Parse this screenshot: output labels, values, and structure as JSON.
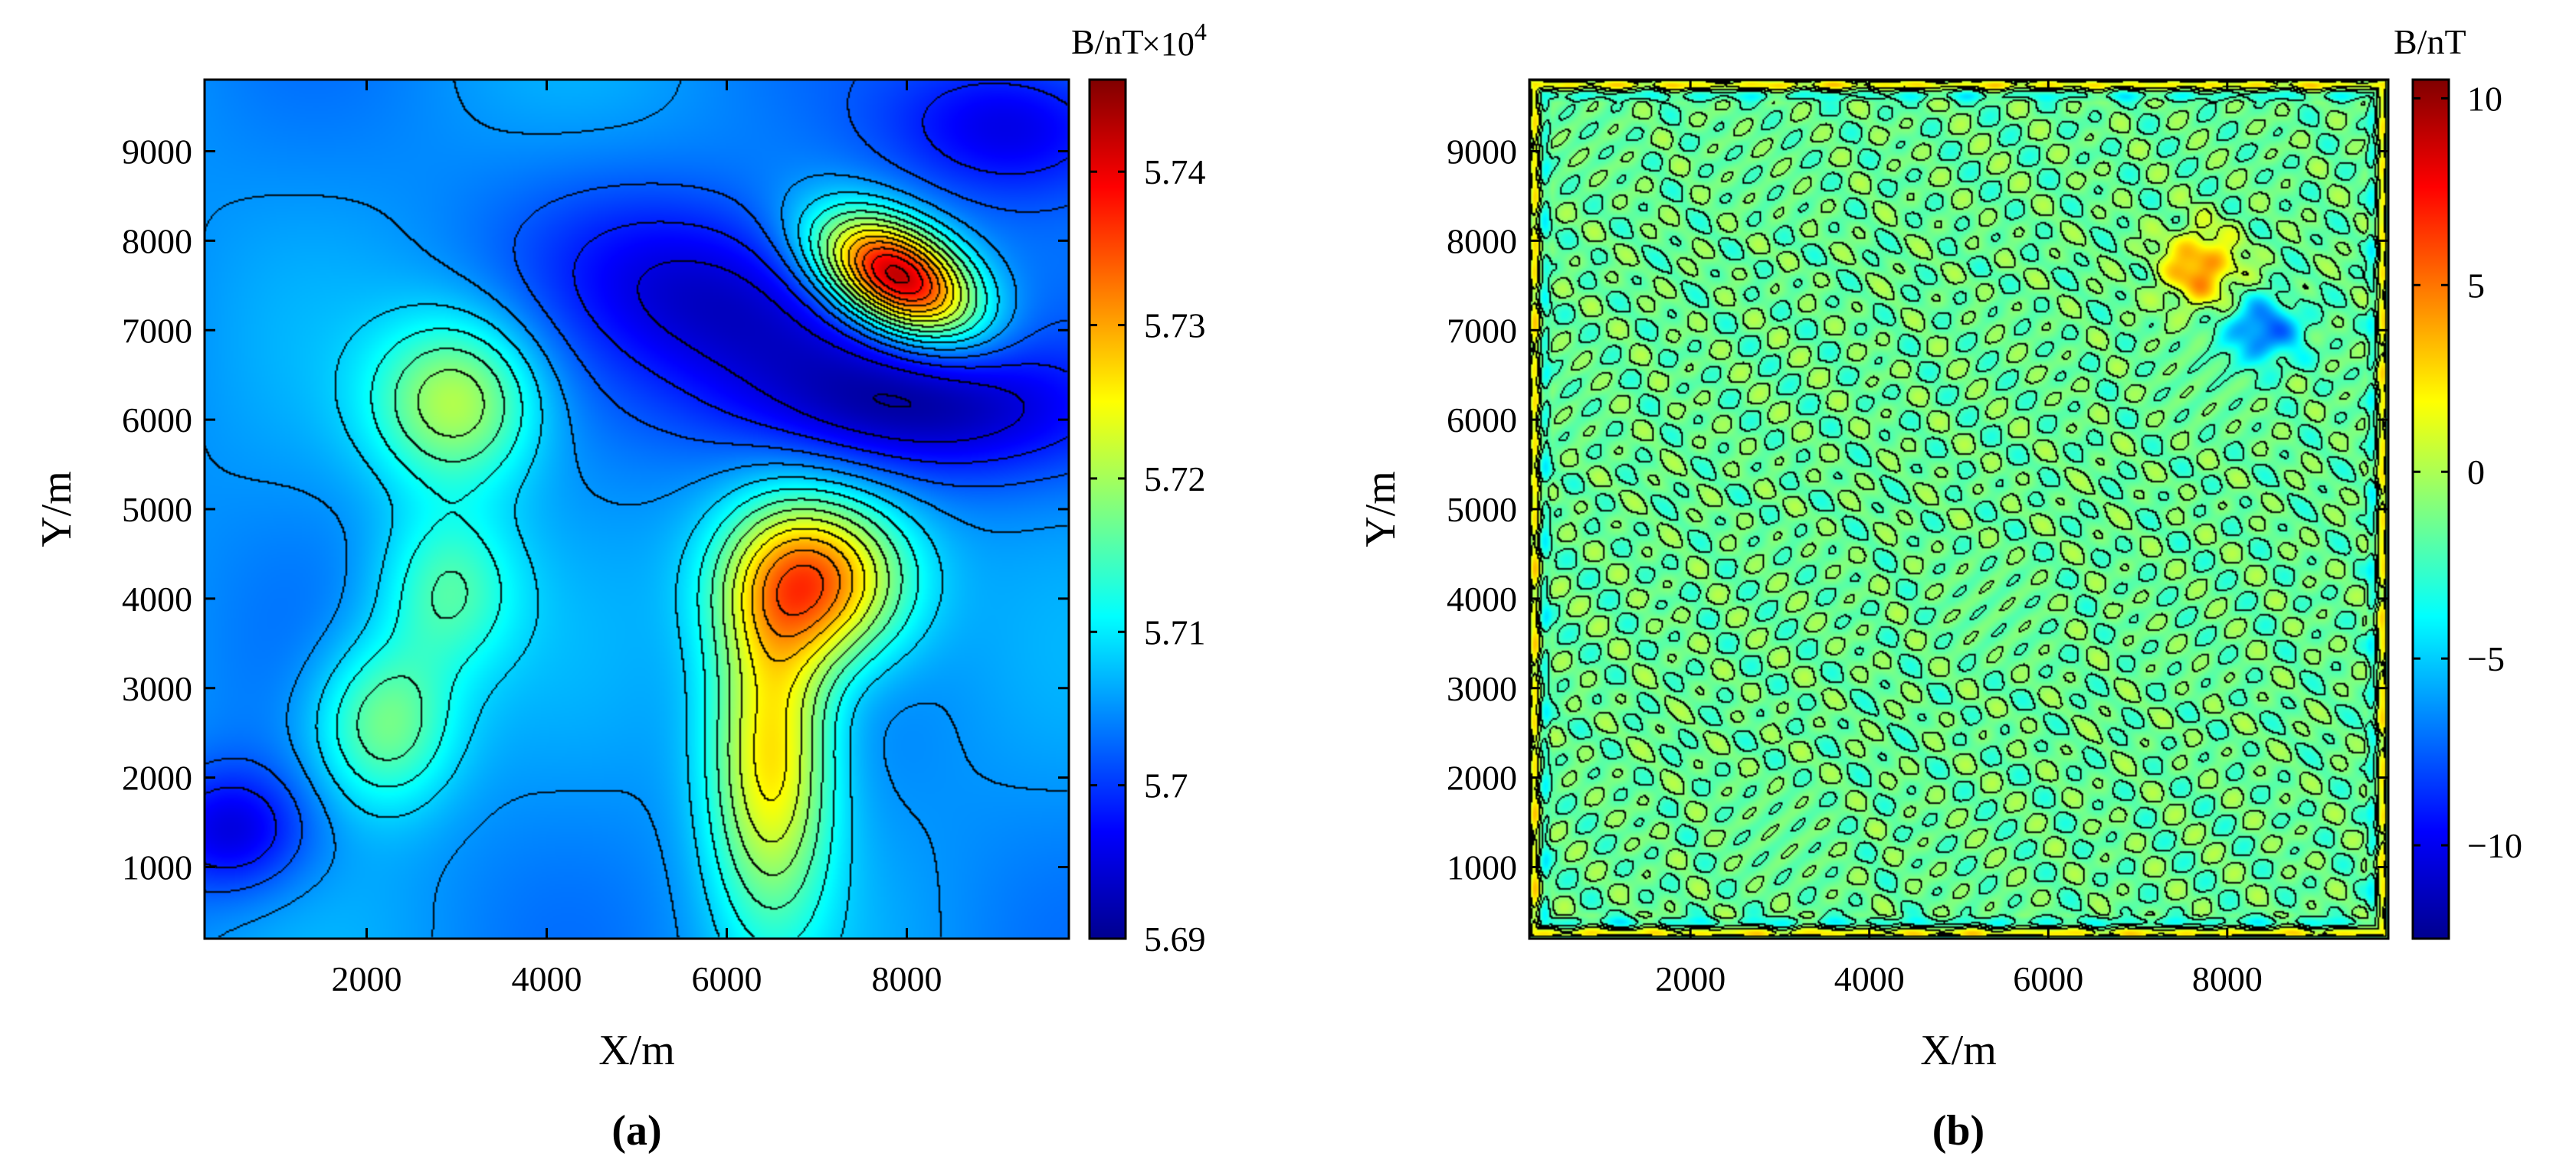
{
  "chart_data": [
    {
      "type": "heatmap",
      "panel_label": "(a)",
      "xlabel": "X/m",
      "ylabel": "Y/m",
      "xlim": [
        200,
        9800
      ],
      "ylim": [
        200,
        9800
      ],
      "xticks": [
        2000,
        4000,
        6000,
        8000
      ],
      "yticks": [
        1000,
        2000,
        3000,
        4000,
        5000,
        6000,
        7000,
        8000,
        9000
      ],
      "colorbar": {
        "label": "B/nT",
        "exponent_label": "×10",
        "exponent": "4",
        "range": [
          5.69,
          5.746
        ],
        "ticks": [
          "5.69",
          "5.7",
          "5.71",
          "5.72",
          "5.73",
          "5.74"
        ],
        "tick_values": [
          5.69,
          5.7,
          5.71,
          5.72,
          5.73,
          5.74
        ],
        "colormap": "jet"
      },
      "base_level": 5.705,
      "features": [
        {
          "x": 7900,
          "y": 7600,
          "amp": 0.04,
          "sx": 650,
          "sy": 380,
          "rot": -30
        },
        {
          "x": 7000,
          "y": 4200,
          "amp": 0.028,
          "sx": 700,
          "sy": 650,
          "rot": 0
        },
        {
          "x": 6500,
          "y": 2300,
          "amp": 0.022,
          "sx": 480,
          "sy": 1300,
          "rot": 0
        },
        {
          "x": 3000,
          "y": 6200,
          "amp": 0.016,
          "sx": 650,
          "sy": 650,
          "rot": 0
        },
        {
          "x": 2200,
          "y": 2600,
          "amp": 0.013,
          "sx": 550,
          "sy": 650,
          "rot": 0
        },
        {
          "x": 2900,
          "y": 4100,
          "amp": 0.01,
          "sx": 550,
          "sy": 650,
          "rot": 0
        },
        {
          "x": 6200,
          "y": 7200,
          "amp": -0.012,
          "sx": 1500,
          "sy": 750,
          "rot": -20
        },
        {
          "x": 8200,
          "y": 6100,
          "amp": -0.01,
          "sx": 1500,
          "sy": 550,
          "rot": 0
        },
        {
          "x": 9200,
          "y": 9300,
          "amp": -0.01,
          "sx": 1000,
          "sy": 600,
          "rot": 0
        },
        {
          "x": 500,
          "y": 1400,
          "amp": -0.01,
          "sx": 600,
          "sy": 500,
          "rot": 0
        }
      ]
    },
    {
      "type": "heatmap",
      "panel_label": "(b)",
      "xlabel": "X/m",
      "ylabel": "Y/m",
      "xlim": [
        200,
        9800
      ],
      "ylim": [
        200,
        9800
      ],
      "xticks": [
        2000,
        4000,
        6000,
        8000
      ],
      "yticks": [
        1000,
        2000,
        3000,
        4000,
        5000,
        6000,
        7000,
        8000,
        9000
      ],
      "colorbar": {
        "label": "B/nT",
        "range": [
          -12.5,
          10.5
        ],
        "ticks": [
          "10",
          "5",
          "0",
          "−5",
          "−10"
        ],
        "tick_values": [
          10,
          5,
          0,
          -5,
          -10
        ],
        "colormap": "jet"
      },
      "base_level": -1.5,
      "features": [
        {
          "x": 7700,
          "y": 7700,
          "amp": 6,
          "sx": 300,
          "sy": 300,
          "rot": 0
        },
        {
          "x": 8400,
          "y": 7000,
          "amp": -6,
          "sx": 300,
          "sy": 250,
          "rot": 0
        }
      ]
    }
  ]
}
